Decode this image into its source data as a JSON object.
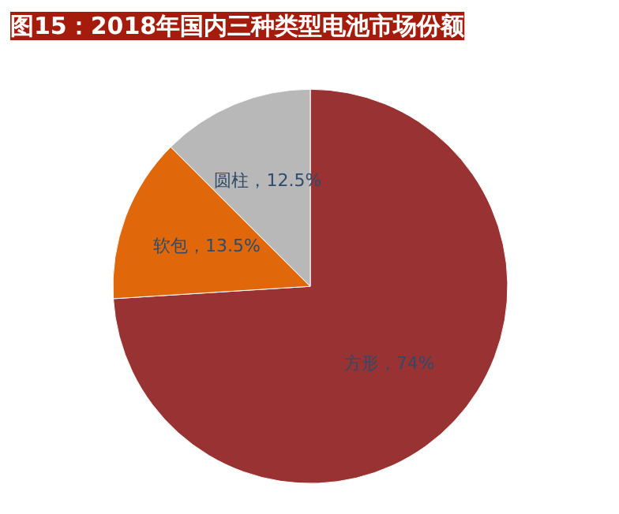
{
  "chart_data": {
    "type": "pie",
    "title": "图15：2018年国内三种类型电池市场份额",
    "categories": [
      "方形",
      "软包",
      "圆柱"
    ],
    "values": [
      74,
      13.5,
      12.5
    ],
    "colors": [
      "#993333",
      "#e0680a",
      "#b8b8b8"
    ],
    "value_labels": [
      "，74%",
      "，13.5%",
      "，12.5%"
    ]
  }
}
